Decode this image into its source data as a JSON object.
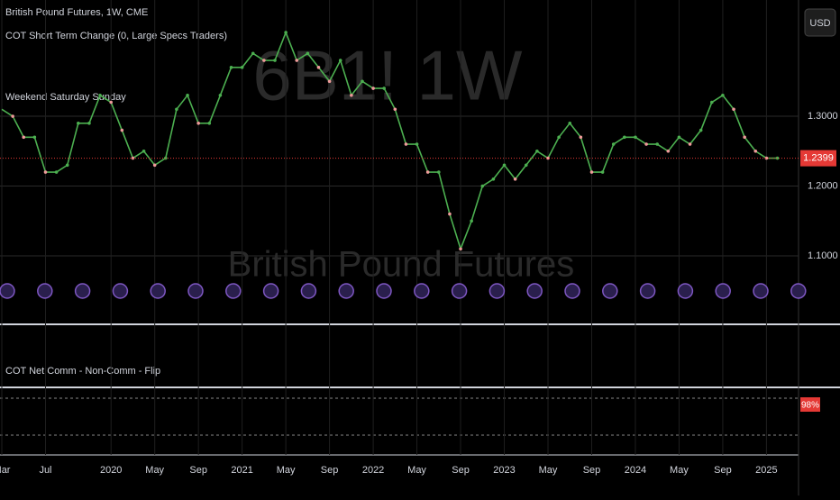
{
  "chart_data": {
    "type": "line",
    "title": "British Pound Futures, 1W, CME",
    "indicators": [
      "COT Short Term Change (0, Large Specs Traders)",
      "Weekend Saturday Sunday"
    ],
    "watermark": "6B1!  1W",
    "watermark_subtitle": "British Pound Futures",
    "currency": "USD",
    "last_price": {
      "value": 1.2399,
      "label": "1.2399"
    },
    "lower_pane_title": "COT Net Comm - Non-Comm - Flip",
    "lower_pane_value": "98%",
    "color": "#4caf50",
    "categories": [
      "Mar",
      null,
      null,
      null,
      "Jul",
      null,
      null,
      null,
      null,
      null,
      "2020",
      null,
      null,
      null,
      "May",
      null,
      null,
      null,
      "Sep",
      null,
      null,
      null,
      "2021",
      null,
      null,
      null,
      "May",
      null,
      null,
      null,
      "Sep",
      null,
      null,
      null,
      "2022",
      null,
      null,
      null,
      "May",
      null,
      null,
      null,
      "Sep",
      null,
      null,
      null,
      "2023",
      null,
      null,
      null,
      "May",
      null,
      null,
      null,
      "Sep",
      null,
      null,
      null,
      "2024",
      null,
      null,
      null,
      "May",
      null,
      null,
      null,
      "Sep",
      null,
      null,
      null,
      "2025",
      null
    ],
    "values": [
      1.31,
      1.3,
      1.27,
      1.27,
      1.22,
      1.22,
      1.23,
      1.29,
      1.29,
      1.33,
      1.32,
      1.28,
      1.24,
      1.25,
      1.23,
      1.24,
      1.31,
      1.33,
      1.29,
      1.29,
      1.33,
      1.37,
      1.37,
      1.39,
      1.38,
      1.38,
      1.42,
      1.38,
      1.39,
      1.37,
      1.35,
      1.38,
      1.33,
      1.35,
      1.34,
      1.34,
      1.31,
      1.26,
      1.26,
      1.22,
      1.22,
      1.16,
      1.11,
      1.15,
      1.2,
      1.21,
      1.23,
      1.21,
      1.23,
      1.25,
      1.24,
      1.27,
      1.29,
      1.27,
      1.22,
      1.22,
      1.26,
      1.27,
      1.27,
      1.26,
      1.26,
      1.25,
      1.27,
      1.26,
      1.28,
      1.32,
      1.33,
      1.31,
      1.27,
      1.25,
      1.24,
      1.24
    ],
    "ylim": [
      1.002,
      1.4665
    ],
    "yticks": [
      {
        "value": 1.1,
        "label": "1.1000"
      },
      {
        "value": 1.2,
        "label": "1.2000"
      },
      {
        "value": 1.3,
        "label": "1.3000"
      }
    ],
    "grid": true
  }
}
